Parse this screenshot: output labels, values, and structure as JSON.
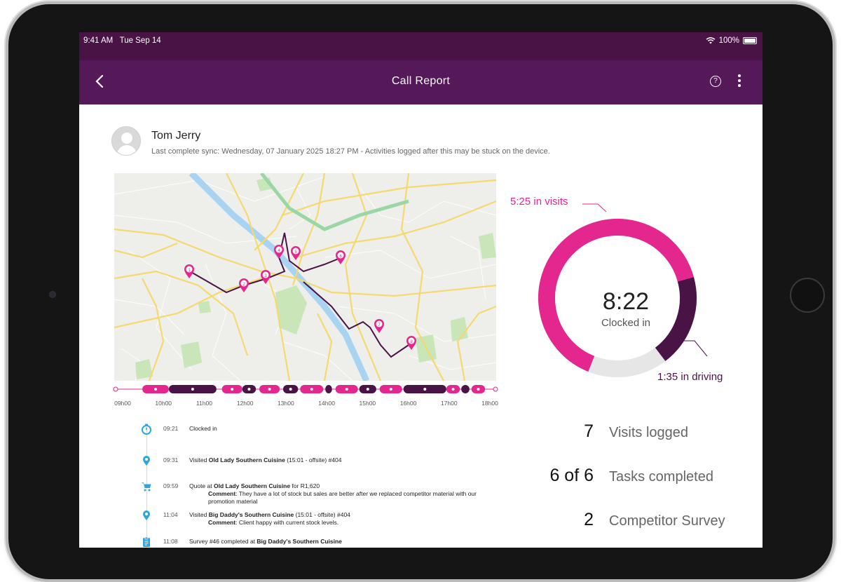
{
  "status_bar": {
    "time": "9:41 AM",
    "date": "Tue Sep 14",
    "battery": "100%"
  },
  "app_bar": {
    "title": "Call Report",
    "back_icon": "chevron-left-icon",
    "help_icon": "help-circle-icon",
    "more_icon": "more-vertical-icon"
  },
  "user": {
    "name": "Tom Jerry",
    "sync": "Last complete sync: Wednesday, 07 January 2025 18:27 PM - Activities logged after this may be stuck on the device."
  },
  "map": {
    "pins": [
      "1",
      "2",
      "3",
      "4",
      "5",
      "6",
      "7",
      "8"
    ]
  },
  "timeline": {
    "ticks": [
      "09h00",
      "10h00",
      "11h00",
      "12h00",
      "13h00",
      "14h00",
      "15h00",
      "16h00",
      "17h00",
      "18h00"
    ],
    "segments": [
      {
        "type": "visit",
        "start": "09:31",
        "end": "10:10"
      },
      {
        "type": "drive",
        "start": "10:10",
        "end": "11:20"
      },
      {
        "type": "visit",
        "start": "11:28",
        "end": "11:58"
      },
      {
        "type": "drive",
        "start": "11:58",
        "end": "12:18"
      },
      {
        "type": "task",
        "start": "12:23",
        "end": "12:53"
      },
      {
        "type": "drive",
        "start": "12:58",
        "end": "13:20"
      },
      {
        "type": "visit",
        "start": "13:23",
        "end": "13:57"
      },
      {
        "type": "break",
        "start": "14:00",
        "end": "14:10"
      },
      {
        "type": "visit",
        "start": "14:15",
        "end": "14:48"
      },
      {
        "type": "drive",
        "start": "14:50",
        "end": "15:15"
      },
      {
        "type": "visit",
        "start": "15:20",
        "end": "15:53"
      },
      {
        "type": "drive",
        "start": "15:55",
        "end": "16:58"
      },
      {
        "type": "visit",
        "start": "16:58",
        "end": "17:18"
      },
      {
        "type": "break",
        "start": "17:20",
        "end": "17:32"
      },
      {
        "type": "visit",
        "start": "17:35",
        "end": "17:55"
      }
    ],
    "colors": {
      "visit": "#e4278e",
      "drive": "#4a1346",
      "task": "#e4278e",
      "break": "#4a1346"
    }
  },
  "activities": [
    {
      "icon": "stopwatch-icon",
      "time": "09:21",
      "text_pre": "Clocked in",
      "bold": "",
      "text_post": "",
      "comment": ""
    },
    {
      "icon": "map-pin-icon",
      "time": "09:31",
      "text_pre": "Visited ",
      "bold": "Old Lady Southern Cuisine",
      "text_post": " (15:01 - offsite) #404",
      "comment": ""
    },
    {
      "icon": "cart-icon",
      "time": "09:59",
      "text_pre": "Quote at ",
      "bold": "Old Lady Southern Cuisine",
      "text_post": " for R1,620",
      "comment_label": "Comment",
      "comment": ": They have a lot of stock but sales are better after we replaced competitor material with our promotion material"
    },
    {
      "icon": "map-pin-icon",
      "time": "11:04",
      "text_pre": "Visited ",
      "bold": "Big Daddy's Southern Cuisine",
      "text_post": " (15:01 - offsite) #404",
      "comment_label": "Comment",
      "comment": ": Client happy with current stock levels."
    },
    {
      "icon": "clipboard-icon",
      "time": "11:08",
      "text_pre": "Survey #46 completed at ",
      "bold": "Big Daddy's Southern Cuisine",
      "text_post": "",
      "comment": ""
    }
  ],
  "donut": {
    "center_value": "8:22",
    "center_label": "Clocked in",
    "visits_label": "5:25 in visits",
    "driving_label": "1:35 in driving",
    "segments": [
      {
        "name": "visits",
        "value": 325,
        "color": "#e4278e"
      },
      {
        "name": "driving",
        "value": 95,
        "color": "#4a1346"
      },
      {
        "name": "other",
        "value": 82,
        "color": "#e6e6e6"
      }
    ]
  },
  "stats": [
    {
      "value": "7",
      "label": "Visits logged"
    },
    {
      "value": "6 of 6",
      "label": "Tasks completed"
    },
    {
      "value": "2",
      "label": "Competitor Survey"
    }
  ]
}
